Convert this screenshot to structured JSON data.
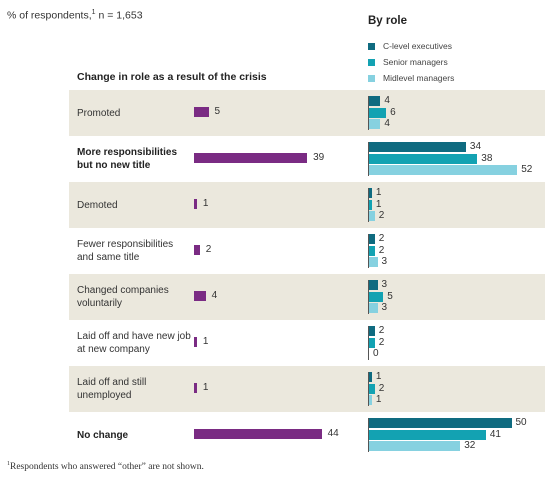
{
  "header": {
    "subtitle_main": "% of respondents,",
    "subtitle_sup": "1",
    "subtitle_n": " n = 1,653",
    "by_role": "By role",
    "section": "Change in role as a result of the crisis"
  },
  "footnote": {
    "sup": "1",
    "text": "Respondents who answered “other” are not shown."
  },
  "colors": {
    "total": "#7a2b83",
    "c_level": "#0f6b80",
    "senior": "#13a2b2",
    "midlevel": "#86d1e0",
    "shaded_row": "#ebe8dd"
  },
  "chart_data": {
    "type": "bar",
    "categories": [
      "Promoted",
      "More responsibilities\nbut no new title",
      "Demoted",
      "Fewer responsibilities\nand same title",
      "Changed companies\nvoluntarily",
      "Laid off and have new job\nat new company",
      "Laid off and still\nunemployed",
      "No change"
    ],
    "bold_categories": [
      false,
      true,
      false,
      false,
      false,
      false,
      false,
      true
    ],
    "total": [
      5,
      39,
      1,
      2,
      4,
      1,
      1,
      44
    ],
    "series": [
      {
        "name": "C-level executives",
        "values": [
          4,
          34,
          1,
          2,
          3,
          2,
          1,
          50
        ]
      },
      {
        "name": "Senior managers",
        "values": [
          6,
          38,
          1,
          2,
          5,
          2,
          2,
          41
        ]
      },
      {
        "name": "Midlevel managers",
        "values": [
          4,
          52,
          2,
          3,
          3,
          0,
          1,
          32
        ]
      }
    ]
  }
}
